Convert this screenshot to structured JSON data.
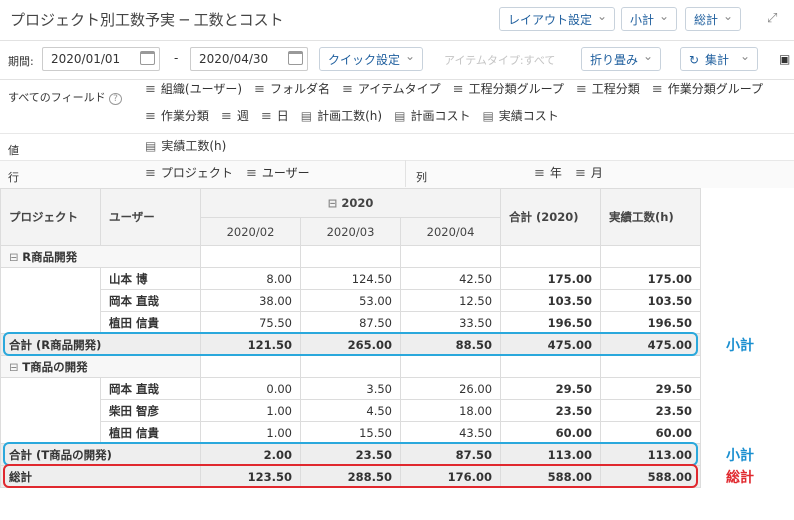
{
  "header": {
    "title": "プロジェクト別工数予実 ─ 工数とコスト",
    "buttons": [
      "レイアウト設定",
      "小計",
      "総計"
    ]
  },
  "toolbar": {
    "period_label": "期間:",
    "start": "2020/01/01",
    "separator": "-",
    "end": "2020/04/30",
    "quick": "クイック設定",
    "item_type": "アイテムタイプ:すべて",
    "collapse": "折り畳み",
    "aggregate": "集計"
  },
  "fields": {
    "label": "すべてのフィールド",
    "dimensions": [
      "組織(ユーザー)",
      "フォルダ名",
      "アイテムタイプ",
      "工程分類グループ",
      "工程分類",
      "作業分類グループ",
      "作業分類",
      "週",
      "日"
    ],
    "measures": [
      "計画工数(h)",
      "計画コスト",
      "実績コスト"
    ],
    "values_label": "値",
    "values": [
      "実績工数(h)"
    ],
    "rows_label": "行",
    "rows": [
      "プロジェクト",
      "ユーザー"
    ],
    "columns_label": "列",
    "columns": [
      "年",
      "月"
    ]
  },
  "table": {
    "headers": [
      "プロジェクト",
      "ユーザー"
    ],
    "year": "2020",
    "months": [
      "2020/02",
      "2020/03",
      "2020/04"
    ],
    "total_header": "合計 (2020)",
    "value_header": "実績工数(h)",
    "groups": [
      {
        "name": "R商品開発",
        "rows": [
          {
            "user": "山本 博",
            "cells": [
              "8.00",
              "124.50",
              "42.50",
              "175.00",
              "175.00"
            ]
          },
          {
            "user": "岡本 直哉",
            "cells": [
              "38.00",
              "53.00",
              "12.50",
              "103.50",
              "103.50"
            ]
          },
          {
            "user": "植田 信貴",
            "cells": [
              "75.50",
              "87.50",
              "33.50",
              "196.50",
              "196.50"
            ]
          }
        ],
        "subtotal": {
          "label": "合計 (R商品開発)",
          "cells": [
            "121.50",
            "265.00",
            "88.50",
            "475.00",
            "475.00"
          ],
          "note": "小計"
        }
      },
      {
        "name": "T商品の開発",
        "rows": [
          {
            "user": "岡本 直哉",
            "cells": [
              "0.00",
              "3.50",
              "26.00",
              "29.50",
              "29.50"
            ]
          },
          {
            "user": "柴田 智彦",
            "cells": [
              "1.00",
              "4.50",
              "18.00",
              "23.50",
              "23.50"
            ]
          },
          {
            "user": "植田 信貴",
            "cells": [
              "1.00",
              "15.50",
              "43.50",
              "60.00",
              "60.00"
            ]
          }
        ],
        "subtotal": {
          "label": "合計 (T商品の開発)",
          "cells": [
            "2.00",
            "23.50",
            "87.50",
            "113.00",
            "113.00"
          ],
          "note": "小計"
        }
      }
    ],
    "grand_total": {
      "label": "総計",
      "cells": [
        "123.50",
        "288.50",
        "176.00",
        "588.00",
        "588.00"
      ],
      "note": "総計"
    }
  }
}
